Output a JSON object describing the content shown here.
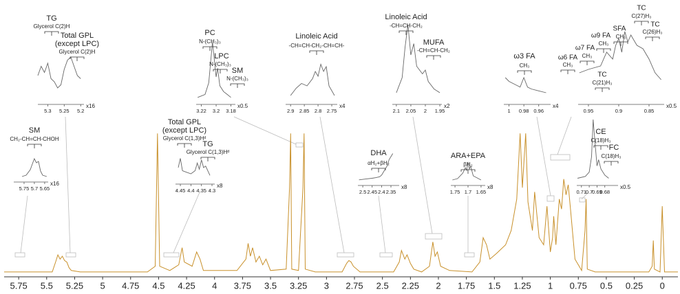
{
  "chart_data": {
    "type": "line",
    "color": "#c8902a",
    "inset_color": "#666666",
    "xlim": [
      5.88,
      -0.14
    ],
    "ylim": [
      0,
      100
    ],
    "xticks": [
      5.75,
      5.5,
      5.25,
      5,
      4.75,
      4.5,
      4.25,
      4,
      3.75,
      3.5,
      3.25,
      3,
      2.75,
      2.5,
      2.25,
      2,
      1.75,
      1.5,
      1.25,
      1,
      0.75,
      0.5,
      0.25,
      0
    ],
    "x": [
      5.88,
      5.45,
      5.42,
      5.4,
      5.38,
      5.36,
      5.34,
      5.32,
      5.3,
      5.28,
      5.2,
      4.6,
      4.53,
      4.51,
      4.49,
      4.4,
      4.32,
      4.29,
      4.27,
      4.2,
      4.16,
      4.13,
      4.1,
      3.8,
      3.72,
      3.7,
      3.68,
      3.66,
      3.63,
      3.6,
      3.57,
      3.54,
      3.5,
      3.36,
      3.33,
      3.32,
      3.31,
      3.25,
      3.21,
      3.2,
      3.19,
      3.1,
      2.86,
      2.82,
      2.8,
      2.78,
      2.76,
      2.7,
      2.4,
      2.35,
      2.33,
      2.3,
      2.28,
      2.25,
      2.22,
      2.15,
      2.08,
      2.05,
      2.03,
      2.01,
      1.98,
      1.9,
      1.7,
      1.63,
      1.6,
      1.57,
      1.54,
      1.48,
      1.4,
      1.35,
      1.3,
      1.27,
      1.25,
      1.22,
      1.2,
      1.16,
      1.14,
      1.1,
      1.06,
      1.03,
      1.0,
      0.98,
      0.97,
      0.95,
      0.92,
      0.9,
      0.88,
      0.86,
      0.84,
      0.82,
      0.78,
      0.72,
      0.69,
      0.68,
      0.67,
      0.6,
      0.12,
      0.09,
      0.08,
      0.07,
      0.02,
      0.0,
      -0.02,
      -0.14
    ],
    "values": [
      1,
      1,
      8,
      13,
      10,
      12,
      9,
      8,
      4,
      2,
      1,
      1,
      5,
      98,
      5,
      2,
      6,
      18,
      8,
      5,
      15,
      10,
      2,
      2,
      10,
      21,
      12,
      18,
      8,
      12,
      6,
      10,
      2,
      3,
      60,
      98,
      3,
      2,
      60,
      98,
      3,
      1,
      1,
      7,
      9,
      8,
      5,
      1,
      1,
      8,
      16,
      10,
      13,
      7,
      3,
      1,
      5,
      22,
      12,
      15,
      5,
      2,
      1,
      8,
      25,
      20,
      10,
      14,
      20,
      30,
      52,
      98,
      60,
      98,
      50,
      30,
      57,
      25,
      20,
      47,
      15,
      25,
      40,
      20,
      52,
      45,
      66,
      55,
      62,
      45,
      10,
      2,
      30,
      52,
      3,
      1,
      1,
      5,
      23,
      3,
      1,
      47,
      1,
      1
    ],
    "insets": [
      {
        "xlim": [
          5.33,
          5.19
        ],
        "xticks": [
          5.3,
          5.25,
          5.2
        ],
        "scale": "x16",
        "x": [
          5.33,
          5.32,
          5.31,
          5.3,
          5.29,
          5.28,
          5.27,
          5.26,
          5.25,
          5.24,
          5.23,
          5.22,
          5.21,
          5.2
        ],
        "values": [
          40,
          55,
          45,
          60,
          35,
          30,
          20,
          25,
          50,
          65,
          70,
          55,
          40,
          35
        ],
        "labels": [
          "TG",
          "Glycerol C(2)H",
          "Total GPL",
          "(except LPC)",
          "Glycerol C(2)H"
        ]
      },
      {
        "xlim": [
          3.227,
          3.174
        ],
        "xticks": [
          3.22,
          3.2,
          3.18
        ],
        "scale": "x0.5",
        "x": [
          3.225,
          3.215,
          3.21,
          3.205,
          3.2,
          3.198,
          3.195,
          3.19,
          3.185,
          3.18
        ],
        "values": [
          5,
          10,
          30,
          100,
          40,
          55,
          25,
          15,
          10,
          5
        ],
        "labels": [
          "PC",
          "N-(CH₃)₃",
          "LPC",
          "N-(CH₃)₃",
          "SM",
          "N-(CH₃)₃"
        ]
      },
      {
        "xlim": [
          2.918,
          2.73
        ],
        "xticks": [
          2.9,
          2.85,
          2.8,
          2.75
        ],
        "scale": "x4",
        "x": [
          2.9,
          2.88,
          2.86,
          2.84,
          2.82,
          2.81,
          2.8,
          2.79,
          2.78,
          2.77,
          2.76,
          2.74
        ],
        "values": [
          10,
          25,
          35,
          30,
          45,
          60,
          50,
          75,
          60,
          70,
          30,
          10
        ],
        "labels": [
          "Linoleic Acid",
          "-CH=CH-CH₂-CH=CH-"
        ]
      },
      {
        "xlim": [
          2.114,
          1.943
        ],
        "xticks": [
          2.1,
          2.05,
          2,
          1.95
        ],
        "scale": "x2",
        "x": [
          2.1,
          2.08,
          2.07,
          2.06,
          2.05,
          2.04,
          2.03,
          2.01,
          2.0,
          1.99,
          1.97,
          1.95
        ],
        "values": [
          10,
          30,
          70,
          100,
          60,
          75,
          45,
          35,
          40,
          25,
          15,
          10
        ],
        "labels": [
          "Linoleic Acid",
          "-CH=CH-CH₂",
          "MUFA",
          "-CH=CH-CH₂"
        ]
      },
      {
        "xlim": [
          1.007,
          0.944
        ],
        "xticks": [
          1,
          0.98,
          0.96
        ],
        "scale": "x4",
        "x": [
          1.005,
          1.0,
          0.99,
          0.985,
          0.98,
          0.975,
          0.97,
          0.96,
          0.95
        ],
        "values": [
          60,
          50,
          40,
          35,
          60,
          35,
          30,
          25,
          20
        ],
        "labels": [
          "ω3 FA",
          "CH₃"
        ]
      },
      {
        "xlim": [
          0.967,
          0.825
        ],
        "xticks": [
          0.95,
          0.9,
          0.85
        ],
        "scale": "x0.5",
        "x": [
          0.965,
          0.95,
          0.93,
          0.92,
          0.91,
          0.905,
          0.9,
          0.895,
          0.89,
          0.885,
          0.88,
          0.87,
          0.86,
          0.85,
          0.84,
          0.83
        ],
        "values": [
          40,
          45,
          50,
          70,
          60,
          80,
          90,
          70,
          100,
          85,
          95,
          80,
          75,
          60,
          40,
          30
        ],
        "labels": [
          "TC",
          "C(27)H₃",
          "TC",
          "C(26)H₃",
          "SFA",
          "CH₃",
          "ω9 FA",
          "CH₃",
          "ω7 FA",
          "CH₃",
          "ω6 FA",
          "CH₃",
          "TC",
          "C(21)H₃"
        ]
      },
      {
        "xlim": [
          5.8,
          5.633
        ],
        "xticks": [
          5.75,
          5.7,
          5.65
        ],
        "scale": "x16",
        "x": [
          5.76,
          5.74,
          5.72,
          5.71,
          5.7,
          5.69,
          5.68,
          5.67,
          5.66,
          5.64
        ],
        "values": [
          5,
          10,
          30,
          50,
          70,
          55,
          60,
          25,
          10,
          5
        ],
        "labels": [
          "SM",
          "CH₂-CH=CH-CHOH"
        ]
      },
      {
        "xlim": [
          4.473,
          4.287
        ],
        "xticks": [
          4.45,
          4.4,
          4.35,
          4.3
        ],
        "scale": "x8",
        "x": [
          4.46,
          4.45,
          4.44,
          4.42,
          4.4,
          4.38,
          4.37,
          4.36,
          4.35,
          4.34,
          4.33,
          4.31
        ],
        "values": [
          40,
          70,
          30,
          25,
          20,
          30,
          55,
          35,
          65,
          40,
          45,
          15
        ],
        "labels": [
          "Total GPL",
          "(except LPC)",
          "Glycerol C(1,3)Hᵈ",
          "TG",
          "Glycerol C(1,3)Hᵈ"
        ]
      },
      {
        "xlim": [
          2.526,
          2.306
        ],
        "xticks": [
          2.5,
          2.45,
          2.4,
          2.35
        ],
        "scale": "x8",
        "x": [
          2.52,
          2.48,
          2.45,
          2.43,
          2.41,
          2.4,
          2.39,
          2.37,
          2.36,
          2.34
        ],
        "values": [
          5,
          8,
          10,
          12,
          15,
          20,
          30,
          50,
          70,
          90
        ],
        "labels": [
          "DHA",
          "αH₂+βH₂"
        ]
      },
      {
        "xlim": [
          1.766,
          1.634
        ],
        "xticks": [
          1.75,
          1.7,
          1.65
        ],
        "scale": "x8",
        "x": [
          1.76,
          1.74,
          1.72,
          1.71,
          1.705,
          1.7,
          1.695,
          1.69,
          1.68,
          1.65
        ],
        "values": [
          5,
          10,
          30,
          50,
          40,
          70,
          45,
          55,
          20,
          5
        ],
        "labels": [
          "ARA+EPA",
          "βH₂"
        ]
      },
      {
        "xlim": [
          0.716,
          0.663
        ],
        "xticks": [
          0.71,
          0.7,
          0.69,
          0.68
        ],
        "scale": "x0.5",
        "x": [
          0.715,
          0.705,
          0.7,
          0.697,
          0.695,
          0.693,
          0.69,
          0.688,
          0.685,
          0.68,
          0.675
        ],
        "values": [
          5,
          8,
          15,
          40,
          100,
          70,
          25,
          35,
          20,
          10,
          5
        ],
        "labels": [
          "CE",
          "C(18)H₃",
          "FC",
          "C(18)H₃"
        ]
      }
    ]
  }
}
